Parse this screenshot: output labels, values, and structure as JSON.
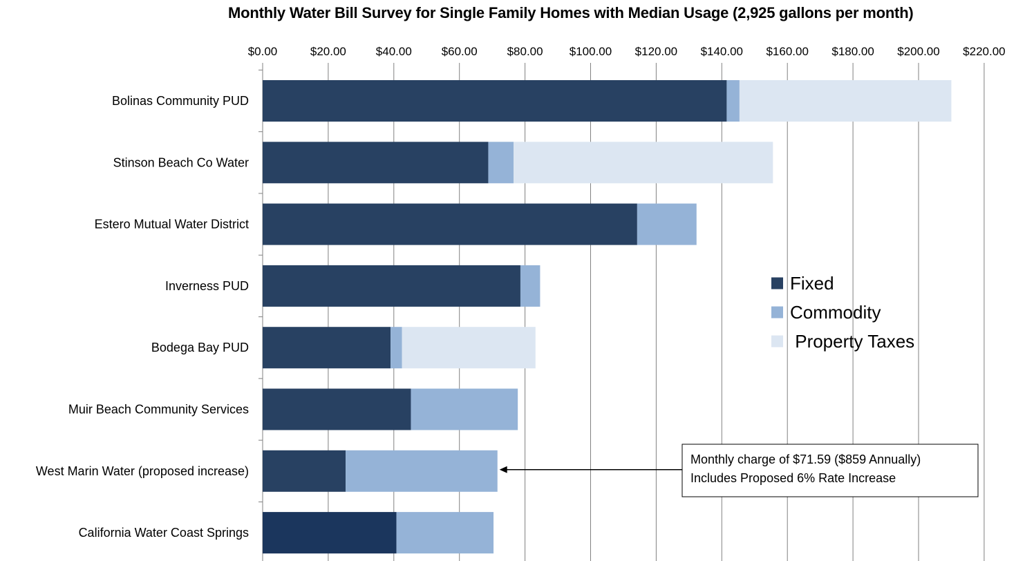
{
  "chart_data": {
    "type": "bar",
    "orientation": "horizontal",
    "stacked": true,
    "title": "Monthly Water Bill Survey for Single Family Homes with Median Usage (2,925 gallons per month)",
    "xlim": [
      0,
      220
    ],
    "x_ticks": [
      0,
      20,
      40,
      60,
      80,
      100,
      120,
      140,
      160,
      180,
      200,
      220
    ],
    "x_tick_labels": [
      "$0.00",
      "$20.00",
      "$40.00",
      "$60.00",
      "$80.00",
      "$100.00",
      "$120.00",
      "$140.00",
      "$160.00",
      "$180.00",
      "$200.00",
      "$220.00"
    ],
    "x_axis_position": "top",
    "grid": "vertical",
    "categories": [
      "Bolinas Community PUD",
      "Stinson Beach Co Water",
      "Estero Mutual Water District",
      "Inverness PUD",
      "Bodega Bay PUD",
      "Muir Beach Community Services",
      "West Marin Water (proposed increase)",
      "California Water Coast Springs"
    ],
    "series": [
      {
        "name": "Fixed",
        "color": "#284162",
        "values": [
          141.5,
          68.8,
          114.2,
          78.6,
          39.0,
          45.2,
          25.3,
          40.8
        ]
      },
      {
        "name": "Commodity",
        "color": "#95b3d7",
        "values": [
          3.9,
          7.7,
          18.1,
          6.0,
          3.5,
          32.6,
          46.3,
          29.6
        ]
      },
      {
        "name": "Property Taxes",
        "color": "#dce6f2",
        "values": [
          64.6,
          79.1,
          0,
          0,
          40.7,
          0,
          0,
          0
        ]
      }
    ],
    "special_colors": [
      {
        "category": "California Water Coast Springs",
        "series": "Fixed",
        "color": "#1b365d"
      }
    ],
    "legend": {
      "placement": "right",
      "items": [
        "Fixed",
        "Commodity",
        " Property Taxes"
      ]
    },
    "annotations": [
      {
        "category": "West Marin Water (proposed increase)",
        "target_value": 71.59,
        "lines": [
          "Monthly charge of $71.59 ($859 Annually)",
          "Includes Proposed 6% Rate Increase"
        ]
      }
    ]
  },
  "colors": {
    "gridline": "#808080",
    "axis": "#808080",
    "annotation_border": "#000000"
  }
}
